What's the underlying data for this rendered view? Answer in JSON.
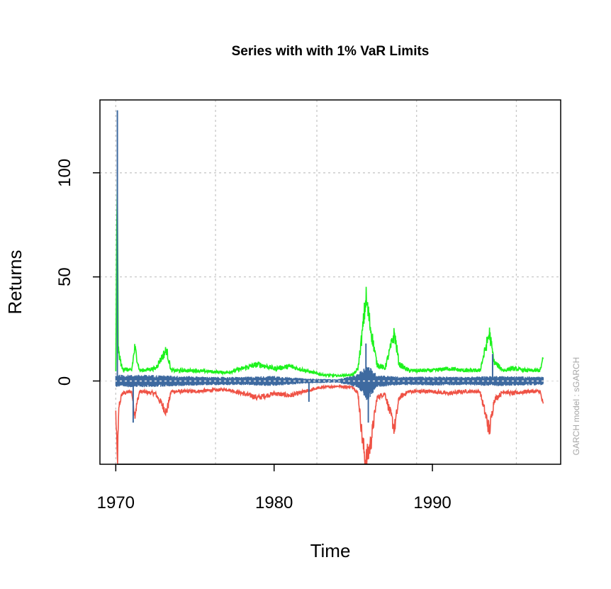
{
  "chart_data": {
    "type": "line",
    "title": "Series with with 1% VaR Limits",
    "xlabel": "Time",
    "ylabel": "Returns",
    "side_note": "GARCH model : sGARCH",
    "xlim": [
      1969.0,
      1998.1
    ],
    "ylim": [
      -40,
      135
    ],
    "x_ticks": [
      1970,
      1980,
      1990
    ],
    "y_ticks": [
      0,
      50,
      100
    ],
    "x_gridlines": [
      1970,
      1976.3,
      1982.7,
      1989.0,
      1995.3
    ],
    "y_gridlines": [
      0,
      50,
      100
    ],
    "grid": true,
    "colors": {
      "series": "#3e6aa0",
      "upper": "#1df21d",
      "lower": "#ef5245",
      "grid": "#c8c8c8"
    },
    "x_range": [
      1970.0,
      1997.0
    ],
    "series": [
      {
        "name": "",
        "color": "#3e6aa0",
        "band_x": [
          1970.0,
          1972,
          1974,
          1976,
          1978,
          1980,
          1982,
          1984,
          1985.2,
          1985.9,
          1986.5,
          1988,
          1990,
          1992,
          1994,
          1997.0
        ],
        "band_high": [
          3,
          3,
          2.5,
          2,
          2,
          2.5,
          1.2,
          0.8,
          3,
          8,
          3,
          2,
          2.2,
          2,
          2.5,
          2
        ],
        "band_low": [
          -3,
          -3,
          -2.5,
          -2,
          -2,
          -2.5,
          -1.2,
          -0.8,
          -3,
          -10,
          -3,
          -2,
          -2.2,
          -2,
          -2.5,
          -2
        ],
        "spikes": [
          {
            "x": 1970.1,
            "y": 130
          },
          {
            "x": 1971.1,
            "y": -20
          },
          {
            "x": 1982.2,
            "y": -10
          },
          {
            "x": 1985.8,
            "y": 18
          },
          {
            "x": 1985.95,
            "y": -20
          },
          {
            "x": 1993.8,
            "y": 13
          }
        ]
      },
      {
        "name": "",
        "color": "#1df21d",
        "x": [
          1970.0,
          1970.1,
          1970.15,
          1970.4,
          1971.0,
          1971.2,
          1971.5,
          1972.5,
          1973.2,
          1973.5,
          1975,
          1977,
          1978.5,
          1979,
          1980,
          1981,
          1982,
          1983,
          1984,
          1985,
          1985.3,
          1985.6,
          1985.8,
          1986.1,
          1986.5,
          1987,
          1987.6,
          1987.9,
          1988.5,
          1990,
          1991,
          1992,
          1993,
          1993.6,
          1993.9,
          1994.5,
          1995,
          1996,
          1996.8,
          1997.0
        ],
        "y": [
          5,
          110,
          15,
          6,
          5,
          16,
          5,
          6,
          15,
          5,
          5,
          4,
          7,
          8,
          6,
          7,
          5,
          3,
          2.5,
          3,
          6,
          25,
          40,
          25,
          8,
          6,
          23,
          8,
          5,
          5,
          6,
          5,
          5,
          23,
          9,
          5,
          6,
          5,
          5,
          11
        ]
      },
      {
        "name": "",
        "color": "#ef5245",
        "x": [
          1970.0,
          1970.1,
          1970.2,
          1970.4,
          1971.0,
          1971.2,
          1971.5,
          1972.5,
          1973.2,
          1973.5,
          1975,
          1977,
          1978.5,
          1979,
          1980,
          1981,
          1982,
          1983,
          1984,
          1985,
          1985.3,
          1985.6,
          1985.8,
          1986.1,
          1986.5,
          1987,
          1987.6,
          1987.9,
          1988.5,
          1990,
          1991,
          1992,
          1993,
          1993.6,
          1993.9,
          1994.5,
          1995,
          1996,
          1996.8,
          1997.0
        ],
        "y": [
          -15,
          -40,
          -12,
          -6,
          -5,
          -16,
          -5,
          -6,
          -15,
          -5,
          -5,
          -4,
          -7,
          -8,
          -6,
          -7,
          -5,
          -3,
          -2.5,
          -3,
          -6,
          -30,
          -39,
          -30,
          -8,
          -6,
          -23,
          -8,
          -5,
          -5,
          -6,
          -5,
          -5,
          -24,
          -9,
          -5,
          -6,
          -5,
          -5,
          -12
        ]
      }
    ]
  }
}
